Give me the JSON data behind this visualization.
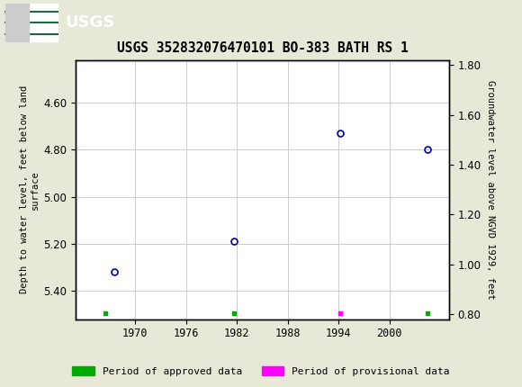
{
  "title": "USGS 352832076470101 BO-383 BATH RS 1",
  "ylabel_left": "Depth to water level, feet below land\nsurface",
  "ylabel_right": "Groundwater level above NGVD 1929, feet",
  "header_color": "#1a6b3c",
  "plot_bg": "#ffffff",
  "grid_color": "#cccccc",
  "data_points": [
    {
      "year": 1967.5,
      "depth": 5.32
    },
    {
      "year": 1981.7,
      "depth": 5.19
    },
    {
      "year": 1994.2,
      "depth": 4.73
    },
    {
      "year": 2004.5,
      "depth": 4.8
    }
  ],
  "approved_squares": [
    {
      "year": 1966.5,
      "depth": 5.495
    },
    {
      "year": 1981.7,
      "depth": 5.495
    },
    {
      "year": 2004.5,
      "depth": 5.495
    }
  ],
  "provisional_squares": [
    {
      "year": 1994.2,
      "depth": 5.495
    }
  ],
  "ylim_left": [
    5.52,
    4.42
  ],
  "ylim_right": [
    0.78,
    1.82
  ],
  "yticks_left": [
    4.6,
    4.8,
    5.0,
    5.2,
    5.4
  ],
  "yticks_right": [
    0.8,
    1.0,
    1.2,
    1.4,
    1.6,
    1.8
  ],
  "xlim": [
    1963,
    2007
  ],
  "xticks": [
    1970,
    1976,
    1982,
    1988,
    1994,
    2000
  ],
  "point_color": "#0000bb",
  "approved_color": "#00aa00",
  "provisional_color": "#ff00ff",
  "legend_approved": "Period of approved data",
  "legend_provisional": "Period of provisional data",
  "bg_color": "#e8e8d8"
}
